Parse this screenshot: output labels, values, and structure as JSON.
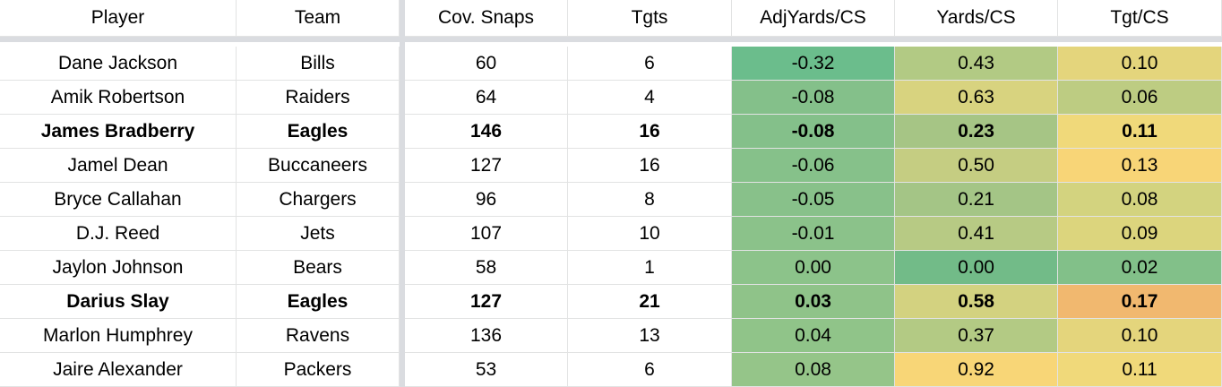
{
  "columns": [
    "Player",
    "Team",
    "Cov. Snaps",
    "Tgts",
    "AdjYards/CS",
    "Yards/CS",
    "Tgt/CS"
  ],
  "rows": [
    {
      "cells": [
        "Dane Jackson",
        "Bills",
        "60",
        "6",
        "-0.32",
        "0.43",
        "0.10"
      ],
      "bold": false,
      "colors": [
        "#6bbd8c",
        "#b2ca84",
        "#e4d57c"
      ]
    },
    {
      "cells": [
        "Amik Robertson",
        "Raiders",
        "64",
        "4",
        "-0.08",
        "0.63",
        "0.06"
      ],
      "bold": false,
      "colors": [
        "#84c08a",
        "#d8d37f",
        "#bdcc82"
      ]
    },
    {
      "cells": [
        "James Bradberry",
        "Eagles",
        "146",
        "16",
        "-0.08",
        "0.23",
        "0.11"
      ],
      "bold": true,
      "colors": [
        "#84c08a",
        "#a6c585",
        "#f0d97a"
      ]
    },
    {
      "cells": [
        "Jamel Dean",
        "Buccaneers",
        "127",
        "16",
        "-0.06",
        "0.50",
        "0.13"
      ],
      "bold": false,
      "colors": [
        "#86c18a",
        "#c5cd82",
        "#f8d577"
      ]
    },
    {
      "cells": [
        "Bryce Callahan",
        "Chargers",
        "96",
        "8",
        "-0.05",
        "0.21",
        "0.08"
      ],
      "bold": false,
      "colors": [
        "#88c18a",
        "#a4c586",
        "#d3d37f"
      ]
    },
    {
      "cells": [
        "D.J. Reed",
        "Jets",
        "107",
        "10",
        "-0.01",
        "0.41",
        "0.09"
      ],
      "bold": false,
      "colors": [
        "#8bc28a",
        "#b7ca84",
        "#dcd57d"
      ]
    },
    {
      "cells": [
        "Jaylon Johnson",
        "Bears",
        "58",
        "1",
        "0.00",
        "0.00",
        "0.02"
      ],
      "bold": false,
      "colors": [
        "#8cc38a",
        "#72bb88",
        "#82c089"
      ]
    },
    {
      "cells": [
        "Darius Slay",
        "Eagles",
        "127",
        "21",
        "0.03",
        "0.58",
        "0.17"
      ],
      "bold": true,
      "colors": [
        "#8fc389",
        "#d3d280",
        "#f1b86f"
      ]
    },
    {
      "cells": [
        "Marlon Humphrey",
        "Ravens",
        "136",
        "13",
        "0.04",
        "0.37",
        "0.10"
      ],
      "bold": false,
      "colors": [
        "#90c489",
        "#b3ca84",
        "#e4d57c"
      ]
    },
    {
      "cells": [
        "Jaire Alexander",
        "Packers",
        "53",
        "6",
        "0.08",
        "0.92",
        "0.11"
      ],
      "bold": false,
      "colors": [
        "#95c589",
        "#f8d677",
        "#f0d97a"
      ]
    }
  ]
}
